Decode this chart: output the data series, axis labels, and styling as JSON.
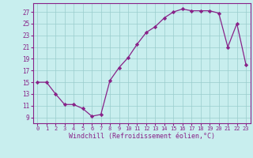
{
  "x": [
    0,
    1,
    2,
    3,
    4,
    5,
    6,
    7,
    8,
    9,
    10,
    11,
    12,
    13,
    14,
    15,
    16,
    17,
    18,
    19,
    20,
    21,
    22,
    23
  ],
  "y": [
    15,
    15,
    13,
    11.2,
    11.2,
    10.5,
    9.2,
    9.5,
    15.3,
    17.5,
    19.2,
    21.5,
    23.5,
    24.5,
    26.0,
    27.0,
    27.5,
    27.2,
    27.2,
    27.2,
    26.8,
    21.0,
    25.0,
    18.0
  ],
  "line_color": "#882288",
  "marker": ".",
  "marker_color": "#882288",
  "bg_color": "#c8eeee",
  "grid_color": "#99cccc",
  "xlabel": "Windchill (Refroidissement éolien,°C)",
  "ytick_labels": [
    "9",
    "11",
    "13",
    "15",
    "17",
    "19",
    "21",
    "23",
    "25",
    "27"
  ],
  "ytick_vals": [
    9,
    11,
    13,
    15,
    17,
    19,
    21,
    23,
    25,
    27
  ],
  "xtick_labels": [
    "0",
    "1",
    "2",
    "3",
    "4",
    "5",
    "6",
    "7",
    "8",
    "9",
    "10",
    "11",
    "12",
    "13",
    "14",
    "15",
    "16",
    "17",
    "18",
    "19",
    "20",
    "21",
    "22",
    "23"
  ],
  "ylim": [
    8.0,
    28.5
  ],
  "xlim": [
    -0.5,
    23.5
  ],
  "tick_color": "#882288",
  "label_color": "#882288",
  "axis_color": "#882288",
  "spine_color": "#882288",
  "xlabel_fontsize": 6.0,
  "xtick_fontsize": 5.0,
  "ytick_fontsize": 5.5
}
